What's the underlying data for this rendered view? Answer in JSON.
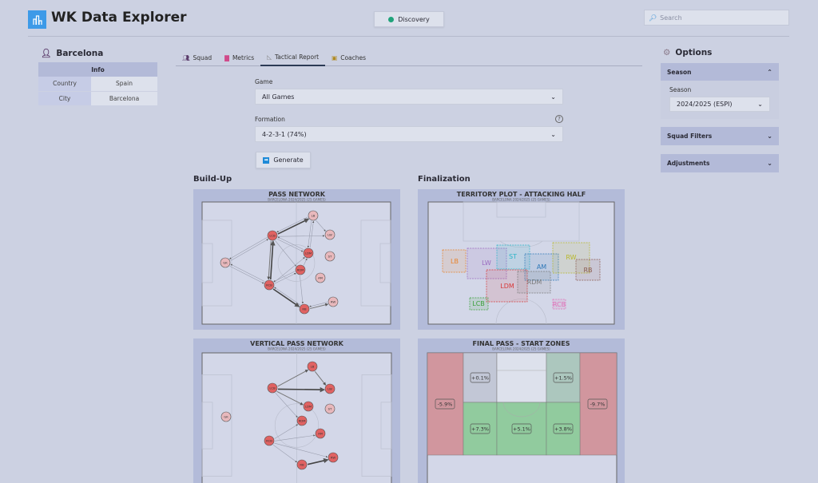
{
  "app": {
    "title": "WK Data Explorer",
    "icon": "bar-chart-icon"
  },
  "nav": {
    "discovery_label": "Discovery",
    "search_placeholder": "Search"
  },
  "team": {
    "name": "Barcelona",
    "info_header": "Info",
    "rows": [
      {
        "key": "Country",
        "value": "Spain"
      },
      {
        "key": "City",
        "value": "Barcelona"
      }
    ]
  },
  "tabs": [
    {
      "label": "Squad",
      "icon": "people-icon"
    },
    {
      "label": "Metrics",
      "icon": "chart-icon"
    },
    {
      "label": "Tactical Report",
      "icon": "ruler-triangle-icon",
      "active": true
    },
    {
      "label": "Coaches",
      "icon": "coach-icon"
    }
  ],
  "form": {
    "game_label": "Game",
    "game_value": "All Games",
    "formation_label": "Formation",
    "formation_value": "4-2-3-1 (74%)",
    "generate_label": "Generate"
  },
  "sections": {
    "buildup": "Build-Up",
    "finalization": "Finalization"
  },
  "options": {
    "title": "Options",
    "season_header": "Season",
    "season_label": "Season",
    "season_value": "2024/2025 (ESPI)",
    "squad_filters": "Squad Filters",
    "adjustments": "Adjustments"
  },
  "charts": {
    "pass_network": {
      "title": "PASS NETWORK",
      "subtitle": "BARCELONA 2024/2025 (25 GAMES)",
      "nodes": [
        {
          "id": "GK",
          "hl": false
        },
        {
          "id": "LCB",
          "hl": true
        },
        {
          "id": "LB",
          "hl": false
        },
        {
          "id": "LW",
          "hl": false
        },
        {
          "id": "LDM",
          "hl": true
        },
        {
          "id": "ST",
          "hl": false
        },
        {
          "id": "RDM",
          "hl": true
        },
        {
          "id": "AM",
          "hl": false
        },
        {
          "id": "RCB",
          "hl": true
        },
        {
          "id": "RB",
          "hl": true
        },
        {
          "id": "RW",
          "hl": false
        }
      ],
      "passes": [
        [
          "GK",
          "LCB",
          1
        ],
        [
          "LCB",
          "GK",
          1
        ],
        [
          "GK",
          "RCB",
          1
        ],
        [
          "RCB",
          "GK",
          1
        ],
        [
          "LCB",
          "LB",
          3
        ],
        [
          "LB",
          "LCB",
          1
        ],
        [
          "LCB",
          "RCB",
          2
        ],
        [
          "RCB",
          "LCB",
          3
        ],
        [
          "LCB",
          "LW",
          1
        ],
        [
          "LCB",
          "LDM",
          1
        ],
        [
          "LDM",
          "LCB",
          1
        ],
        [
          "LCB",
          "RDM",
          1
        ],
        [
          "LB",
          "LDM",
          1
        ],
        [
          "LDM",
          "LB",
          1
        ],
        [
          "LB",
          "LW",
          1
        ],
        [
          "RCB",
          "RB",
          3
        ],
        [
          "RB",
          "RCB",
          1
        ],
        [
          "RCB",
          "RDM",
          1
        ],
        [
          "RDM",
          "RCB",
          1
        ],
        [
          "RCB",
          "LDM",
          1
        ],
        [
          "RDM",
          "LDM",
          1
        ],
        [
          "RDM",
          "RB",
          1
        ],
        [
          "RB",
          "RW",
          2
        ],
        [
          "RW",
          "RB",
          1
        ]
      ]
    },
    "vertical_pass_network": {
      "title": "VERTICAL PASS NETWORK",
      "subtitle": "BARCELONA 2024/2025 (25 GAMES)",
      "nodes": [
        {
          "id": "GK",
          "hl": false
        },
        {
          "id": "LCB",
          "hl": true
        },
        {
          "id": "LB",
          "hl": true
        },
        {
          "id": "LW",
          "hl": true
        },
        {
          "id": "LDM",
          "hl": true
        },
        {
          "id": "ST",
          "hl": false
        },
        {
          "id": "RDM",
          "hl": true
        },
        {
          "id": "AM",
          "hl": true
        },
        {
          "id": "RCB",
          "hl": true
        },
        {
          "id": "RB",
          "hl": true
        },
        {
          "id": "RW",
          "hl": true
        }
      ],
      "passes": [
        [
          "LCB",
          "LB",
          2
        ],
        [
          "LCB",
          "LW",
          3
        ],
        [
          "LCB",
          "LDM",
          2
        ],
        [
          "LCB",
          "RDM",
          1
        ],
        [
          "LB",
          "LW",
          2
        ],
        [
          "RCB",
          "RDM",
          1
        ],
        [
          "RCB",
          "AM",
          1
        ],
        [
          "RCB",
          "RW",
          1
        ],
        [
          "RCB",
          "RB",
          1
        ],
        [
          "RB",
          "RW",
          3
        ]
      ]
    },
    "territory": {
      "title": "TERRITORY PLOT - ATTACKING HALF",
      "subtitle": "BARCELONA 2024/2025 (25 GAMES)",
      "zones": [
        {
          "id": "LB",
          "color": "#e8822a"
        },
        {
          "id": "LW",
          "color": "#9a6ac0"
        },
        {
          "id": "ST",
          "color": "#2bb5c8"
        },
        {
          "id": "AM",
          "color": "#2f78b8"
        },
        {
          "id": "RW",
          "color": "#b8b82a"
        },
        {
          "id": "RB",
          "color": "#8a5a50"
        },
        {
          "id": "LDM",
          "color": "#d83a3a"
        },
        {
          "id": "RDM",
          "color": "#7a7a7a"
        },
        {
          "id": "LCB",
          "color": "#3aa03a"
        },
        {
          "id": "RCB",
          "color": "#e070b8"
        }
      ]
    },
    "final_pass": {
      "title": "FINAL PASS - START ZONES",
      "subtitle": "BARCELONA 2024/2025 (25 GAMES)",
      "zones": [
        {
          "value": "-5.9%",
          "color": "#d1969e"
        },
        {
          "value": "+0.1%",
          "color": "#c2c7d6"
        },
        {
          "value": "",
          "color": "#dde1ec"
        },
        {
          "value": "+1.5%",
          "color": "#acc7be"
        },
        {
          "value": "-9.7%",
          "color": "#d1969e"
        },
        {
          "value": "+7.3%",
          "color": "#91cb9e"
        },
        {
          "value": "+5.1%",
          "color": "#91cb9e"
        },
        {
          "value": "+3.8%",
          "color": "#91cb9e"
        }
      ]
    }
  }
}
